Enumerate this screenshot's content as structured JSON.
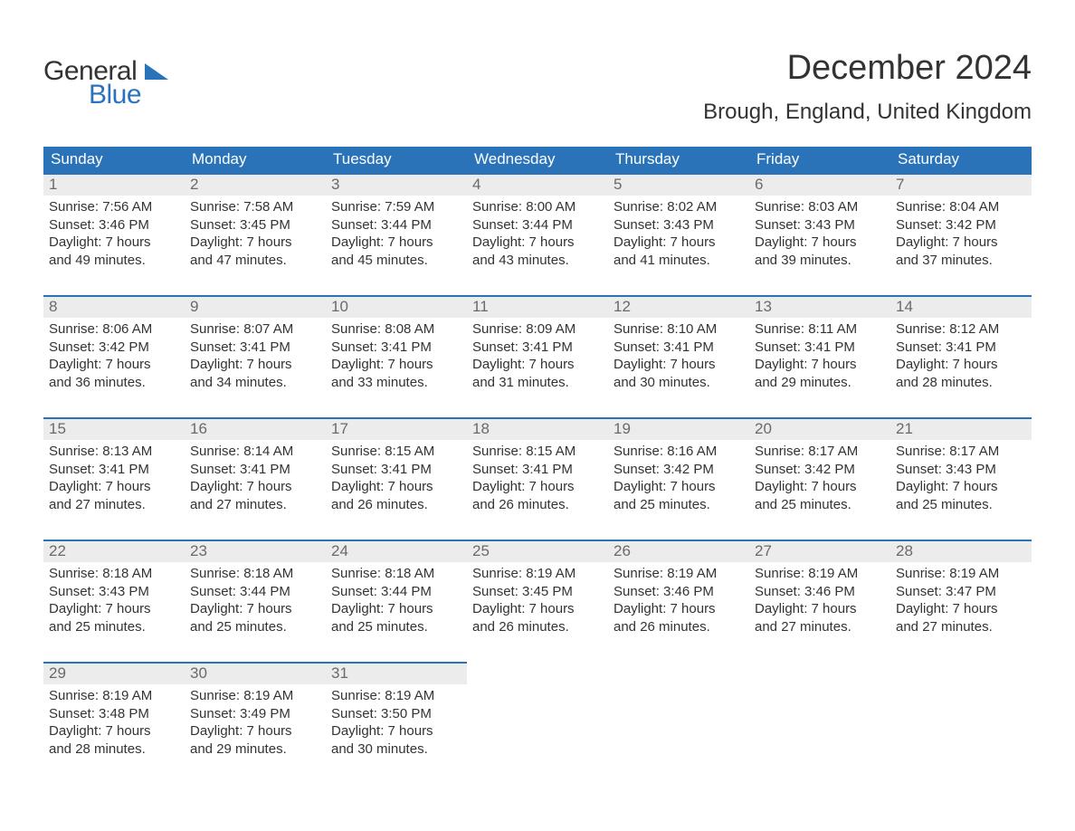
{
  "colors": {
    "accent": "#2a73b8",
    "header_text": "#ffffff",
    "daynum_bg": "#ececec",
    "daynum_text": "#6a6a6a",
    "text": "#333333",
    "background": "#ffffff"
  },
  "logo": {
    "line1": "General",
    "line2": "Blue"
  },
  "title": "December 2024",
  "subtitle": "Brough, England, United Kingdom",
  "day_headers": [
    "Sunday",
    "Monday",
    "Tuesday",
    "Wednesday",
    "Thursday",
    "Friday",
    "Saturday"
  ],
  "labels": {
    "sunrise_prefix": "Sunrise: ",
    "sunset_prefix": "Sunset: ",
    "daylight_prefix": "Daylight: ",
    "daylight_hours_word": " hours",
    "daylight_mid": "and ",
    "daylight_suffix": " minutes."
  },
  "weeks": [
    [
      {
        "day": 1,
        "sunrise": "7:56 AM",
        "sunset": "3:46 PM",
        "d_h": 7,
        "d_m": 49
      },
      {
        "day": 2,
        "sunrise": "7:58 AM",
        "sunset": "3:45 PM",
        "d_h": 7,
        "d_m": 47
      },
      {
        "day": 3,
        "sunrise": "7:59 AM",
        "sunset": "3:44 PM",
        "d_h": 7,
        "d_m": 45
      },
      {
        "day": 4,
        "sunrise": "8:00 AM",
        "sunset": "3:44 PM",
        "d_h": 7,
        "d_m": 43
      },
      {
        "day": 5,
        "sunrise": "8:02 AM",
        "sunset": "3:43 PM",
        "d_h": 7,
        "d_m": 41
      },
      {
        "day": 6,
        "sunrise": "8:03 AM",
        "sunset": "3:43 PM",
        "d_h": 7,
        "d_m": 39
      },
      {
        "day": 7,
        "sunrise": "8:04 AM",
        "sunset": "3:42 PM",
        "d_h": 7,
        "d_m": 37
      }
    ],
    [
      {
        "day": 8,
        "sunrise": "8:06 AM",
        "sunset": "3:42 PM",
        "d_h": 7,
        "d_m": 36
      },
      {
        "day": 9,
        "sunrise": "8:07 AM",
        "sunset": "3:41 PM",
        "d_h": 7,
        "d_m": 34
      },
      {
        "day": 10,
        "sunrise": "8:08 AM",
        "sunset": "3:41 PM",
        "d_h": 7,
        "d_m": 33
      },
      {
        "day": 11,
        "sunrise": "8:09 AM",
        "sunset": "3:41 PM",
        "d_h": 7,
        "d_m": 31
      },
      {
        "day": 12,
        "sunrise": "8:10 AM",
        "sunset": "3:41 PM",
        "d_h": 7,
        "d_m": 30
      },
      {
        "day": 13,
        "sunrise": "8:11 AM",
        "sunset": "3:41 PM",
        "d_h": 7,
        "d_m": 29
      },
      {
        "day": 14,
        "sunrise": "8:12 AM",
        "sunset": "3:41 PM",
        "d_h": 7,
        "d_m": 28
      }
    ],
    [
      {
        "day": 15,
        "sunrise": "8:13 AM",
        "sunset": "3:41 PM",
        "d_h": 7,
        "d_m": 27
      },
      {
        "day": 16,
        "sunrise": "8:14 AM",
        "sunset": "3:41 PM",
        "d_h": 7,
        "d_m": 27
      },
      {
        "day": 17,
        "sunrise": "8:15 AM",
        "sunset": "3:41 PM",
        "d_h": 7,
        "d_m": 26
      },
      {
        "day": 18,
        "sunrise": "8:15 AM",
        "sunset": "3:41 PM",
        "d_h": 7,
        "d_m": 26
      },
      {
        "day": 19,
        "sunrise": "8:16 AM",
        "sunset": "3:42 PM",
        "d_h": 7,
        "d_m": 25
      },
      {
        "day": 20,
        "sunrise": "8:17 AM",
        "sunset": "3:42 PM",
        "d_h": 7,
        "d_m": 25
      },
      {
        "day": 21,
        "sunrise": "8:17 AM",
        "sunset": "3:43 PM",
        "d_h": 7,
        "d_m": 25
      }
    ],
    [
      {
        "day": 22,
        "sunrise": "8:18 AM",
        "sunset": "3:43 PM",
        "d_h": 7,
        "d_m": 25
      },
      {
        "day": 23,
        "sunrise": "8:18 AM",
        "sunset": "3:44 PM",
        "d_h": 7,
        "d_m": 25
      },
      {
        "day": 24,
        "sunrise": "8:18 AM",
        "sunset": "3:44 PM",
        "d_h": 7,
        "d_m": 25
      },
      {
        "day": 25,
        "sunrise": "8:19 AM",
        "sunset": "3:45 PM",
        "d_h": 7,
        "d_m": 26
      },
      {
        "day": 26,
        "sunrise": "8:19 AM",
        "sunset": "3:46 PM",
        "d_h": 7,
        "d_m": 26
      },
      {
        "day": 27,
        "sunrise": "8:19 AM",
        "sunset": "3:46 PM",
        "d_h": 7,
        "d_m": 27
      },
      {
        "day": 28,
        "sunrise": "8:19 AM",
        "sunset": "3:47 PM",
        "d_h": 7,
        "d_m": 27
      }
    ],
    [
      {
        "day": 29,
        "sunrise": "8:19 AM",
        "sunset": "3:48 PM",
        "d_h": 7,
        "d_m": 28
      },
      {
        "day": 30,
        "sunrise": "8:19 AM",
        "sunset": "3:49 PM",
        "d_h": 7,
        "d_m": 29
      },
      {
        "day": 31,
        "sunrise": "8:19 AM",
        "sunset": "3:50 PM",
        "d_h": 7,
        "d_m": 30
      },
      null,
      null,
      null,
      null
    ]
  ]
}
